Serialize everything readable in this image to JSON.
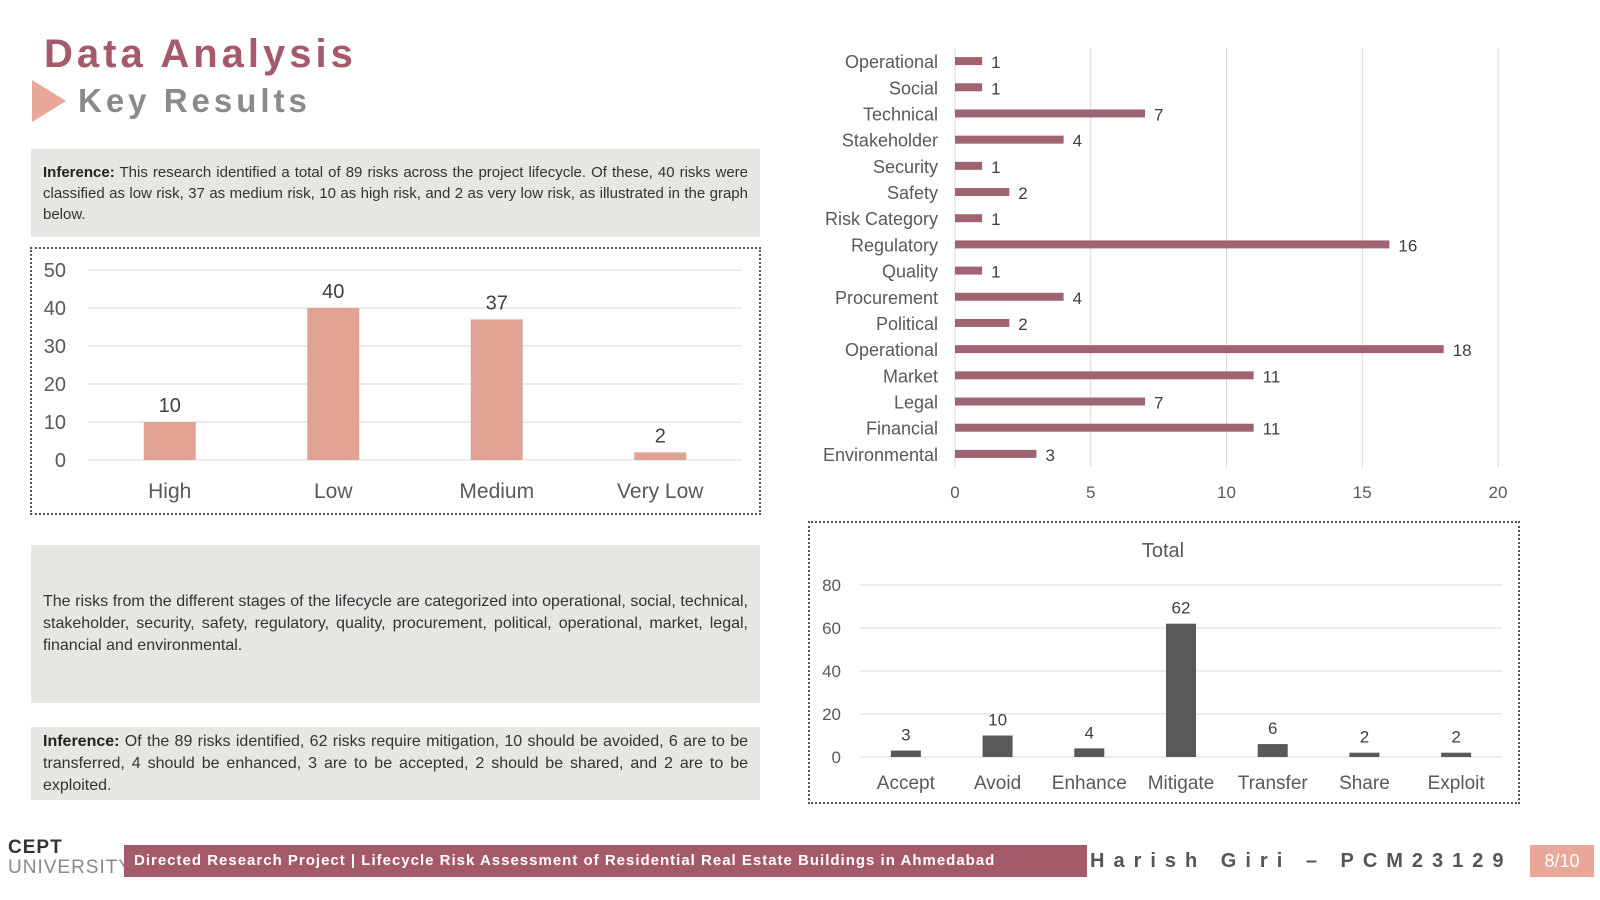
{
  "header": {
    "title": "Data Analysis",
    "subtitle": "Key Results"
  },
  "inference1": {
    "label": "Inference:",
    "text": " This research identified a total of 89 risks across the project lifecycle. Of these, 40 risks were classified as low risk, 37 as medium risk, 10 as high risk, and 2 as very low risk, as illustrated in the graph below."
  },
  "categories_note": {
    "text": "The risks from the different stages of the lifecycle are categorized into operational, social, technical, stakeholder, security, safety, regulatory, quality, procurement, political, operational, market, legal, financial and environmental."
  },
  "inference2": {
    "label": "Inference:",
    "text": " Of the 89 risks identified, 62 risks require mitigation, 10 should be avoided, 6 are to be transferred, 4 should be enhanced, 3 are to be accepted, 2 should be shared, and 2 are to be exploited."
  },
  "footer": {
    "logo_line1": "CEPT",
    "logo_line2": "UNIVERSITY",
    "banner": "Directed Research Project | Lifecycle Risk Assessment of Residential Real Estate Buildings in Ahmedabad",
    "author": "Harish Giri – PCM23129",
    "page": "8/10"
  },
  "chart_data": [
    {
      "type": "bar",
      "categories": [
        "High",
        "Low",
        "Medium",
        "Very Low"
      ],
      "values": [
        10,
        40,
        37,
        2
      ],
      "title": "",
      "xlabel": "",
      "ylabel": "",
      "ylim": [
        0,
        50
      ],
      "yticks": [
        0,
        10,
        20,
        30,
        40,
        50
      ],
      "grid": true,
      "color": "#e0a293"
    },
    {
      "type": "bar",
      "orientation": "horizontal",
      "categories": [
        "Operational",
        "Social",
        "Technical",
        "Stakeholder",
        "Security",
        "Safety",
        "Risk Category",
        "Regulatory",
        "Quality",
        "Procurement",
        "Political",
        "Operational",
        "Market",
        "Legal",
        "Financial",
        "Environmental"
      ],
      "values": [
        1,
        1,
        7,
        4,
        1,
        2,
        1,
        16,
        1,
        4,
        2,
        18,
        11,
        7,
        11,
        3
      ],
      "title": "",
      "xlabel": "",
      "ylabel": "",
      "xlim": [
        0,
        20
      ],
      "xticks": [
        0,
        5,
        10,
        15,
        20
      ],
      "grid": true,
      "color": "#a06470"
    },
    {
      "type": "bar",
      "categories": [
        "Accept",
        "Avoid",
        "Enhance",
        "Mitigate",
        "Transfer",
        "Share",
        "Exploit"
      ],
      "values": [
        3,
        10,
        4,
        62,
        6,
        2,
        2
      ],
      "title": "Total",
      "xlabel": "",
      "ylabel": "",
      "ylim": [
        0,
        80
      ],
      "yticks": [
        0,
        20,
        40,
        60,
        80
      ],
      "grid": true,
      "color": "#595959"
    }
  ]
}
